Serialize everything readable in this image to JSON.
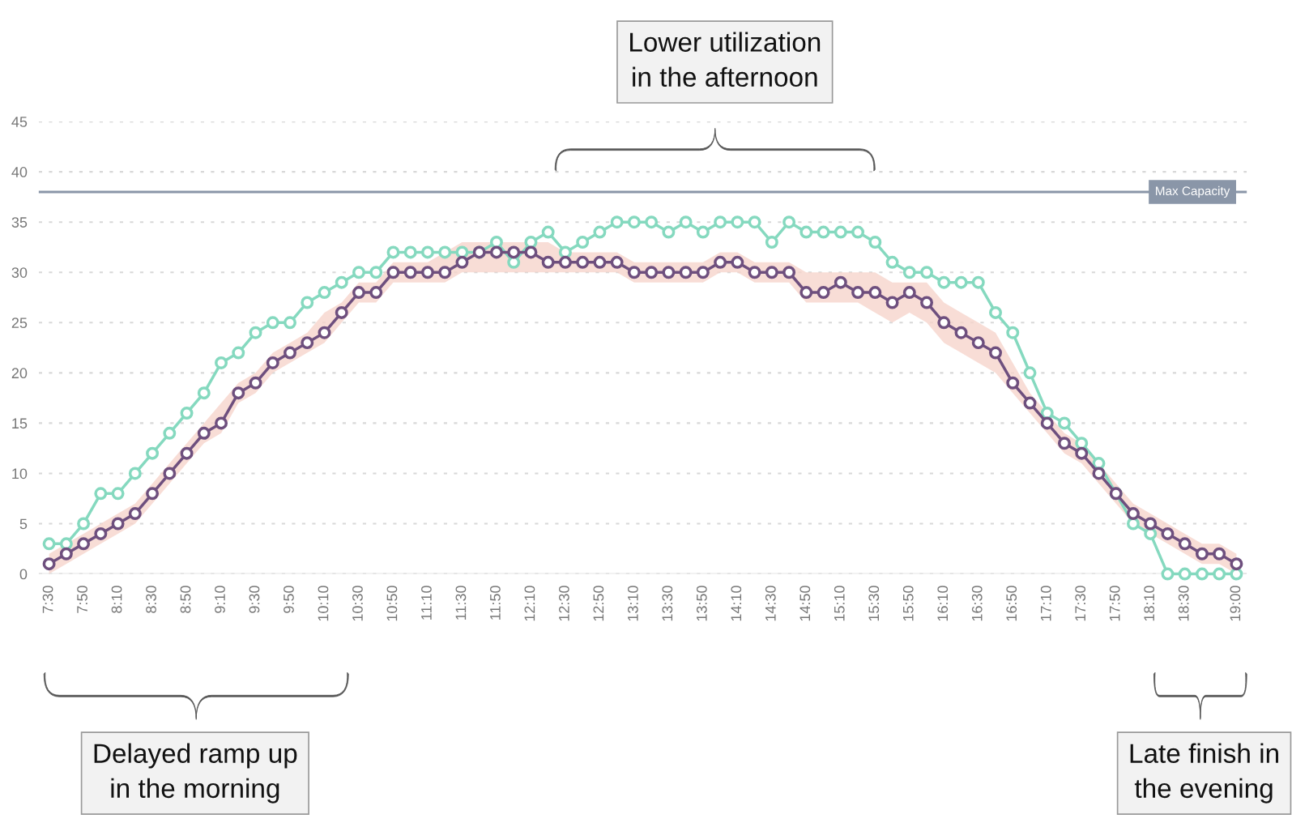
{
  "chart_data": {
    "type": "line",
    "x": [
      7.5,
      7.6667,
      7.8333,
      8.0,
      8.1667,
      8.3333,
      8.5,
      8.6667,
      8.8333,
      9.0,
      9.1667,
      9.3333,
      9.5,
      9.6667,
      9.8333,
      10.0,
      10.1667,
      10.3333,
      10.5,
      10.6667,
      10.8333,
      11.0,
      11.1667,
      11.3333,
      11.5,
      11.6667,
      11.8333,
      12.0,
      12.1667,
      12.3333,
      12.5,
      12.6667,
      12.8333,
      13.0,
      13.1667,
      13.3333,
      13.5,
      13.6667,
      13.8333,
      14.0,
      14.1667,
      14.3333,
      14.5,
      14.6667,
      14.8333,
      15.0,
      15.1667,
      15.3333,
      15.5,
      15.6667,
      15.8333,
      16.0,
      16.1667,
      16.3333,
      16.5,
      16.6667,
      16.8333,
      17.0,
      17.1667,
      17.3333,
      17.5,
      17.6667,
      17.8333,
      18.0,
      18.1667,
      18.3333,
      18.5,
      18.6667,
      18.8333,
      19.0
    ],
    "series": [
      {
        "color": "#85d9bf",
        "values": [
          3,
          3,
          5,
          8,
          8,
          10,
          12,
          14,
          16,
          18,
          21,
          22,
          24,
          25,
          25,
          27,
          28,
          29,
          30,
          30,
          32,
          32,
          32,
          32,
          32,
          32,
          33,
          31,
          33,
          34,
          32,
          33,
          34,
          35,
          35,
          35,
          34,
          35,
          34,
          35,
          35,
          35,
          33,
          35,
          34,
          34,
          34,
          34,
          33,
          31,
          30,
          30,
          29,
          29,
          29,
          26,
          24,
          20,
          16,
          15,
          13,
          11,
          8,
          5,
          4,
          0,
          0,
          0,
          0,
          0
        ]
      },
      {
        "color": "#6e4f7e",
        "values": [
          1,
          2,
          3,
          4,
          5,
          6,
          8,
          10,
          12,
          14,
          15,
          18,
          19,
          21,
          22,
          23,
          24,
          26,
          28,
          28,
          30,
          30,
          30,
          30,
          31,
          32,
          32,
          32,
          32,
          31,
          31,
          31,
          31,
          31,
          30,
          30,
          30,
          30,
          30,
          31,
          31,
          30,
          30,
          30,
          28,
          28,
          29,
          28,
          28,
          27,
          28,
          27,
          25,
          24,
          23,
          22,
          19,
          17,
          15,
          13,
          12,
          10,
          8,
          6,
          5,
          4,
          3,
          2,
          2,
          1
        ],
        "lower": [
          0,
          1,
          2,
          3,
          4,
          5,
          7,
          9,
          11,
          13,
          14,
          17,
          18,
          20,
          21,
          22,
          23,
          25,
          27,
          27,
          29,
          29,
          29,
          29,
          30,
          30,
          30,
          30,
          30,
          30,
          30,
          30,
          30,
          30,
          29,
          29,
          29,
          29,
          29,
          30,
          30,
          29,
          29,
          29,
          27,
          27,
          27,
          27,
          26,
          25,
          26,
          25,
          23,
          22,
          21,
          20,
          18,
          16,
          14,
          12,
          11,
          9,
          7,
          5,
          4,
          3,
          2,
          1,
          1,
          0
        ],
        "upper": [
          2,
          3,
          4,
          5,
          6,
          7,
          9,
          11,
          13,
          15,
          17,
          19,
          20,
          22,
          23,
          24,
          26,
          27,
          29,
          29,
          31,
          31,
          31,
          32,
          33,
          33,
          33,
          33,
          33,
          33,
          32,
          32,
          32,
          32,
          31,
          31,
          31,
          31,
          31,
          32,
          32,
          31,
          31,
          31,
          30,
          30,
          30,
          30,
          30,
          29,
          29,
          29,
          27,
          26,
          25,
          24,
          21,
          18,
          16,
          14,
          13,
          11,
          9,
          7,
          6,
          5,
          4,
          3,
          3,
          2
        ]
      }
    ],
    "xlim": [
      7.4,
      19.1
    ],
    "xticks": [
      {
        "value": 7.5,
        "label": "7:30"
      },
      {
        "value": 7.8333,
        "label": "7:50"
      },
      {
        "value": 8.1667,
        "label": "8:10"
      },
      {
        "value": 8.5,
        "label": "8:30"
      },
      {
        "value": 8.8333,
        "label": "8:50"
      },
      {
        "value": 9.1667,
        "label": "9:10"
      },
      {
        "value": 9.5,
        "label": "9:30"
      },
      {
        "value": 9.8333,
        "label": "9:50"
      },
      {
        "value": 10.1667,
        "label": "10:10"
      },
      {
        "value": 10.5,
        "label": "10:30"
      },
      {
        "value": 10.8333,
        "label": "10:50"
      },
      {
        "value": 11.1667,
        "label": "11:10"
      },
      {
        "value": 11.5,
        "label": "11:30"
      },
      {
        "value": 11.8333,
        "label": "11:50"
      },
      {
        "value": 12.1667,
        "label": "12:10"
      },
      {
        "value": 12.5,
        "label": "12:30"
      },
      {
        "value": 12.8333,
        "label": "12:50"
      },
      {
        "value": 13.1667,
        "label": "13:10"
      },
      {
        "value": 13.5,
        "label": "13:30"
      },
      {
        "value": 13.8333,
        "label": "13:50"
      },
      {
        "value": 14.1667,
        "label": "14:10"
      },
      {
        "value": 14.5,
        "label": "14:30"
      },
      {
        "value": 14.8333,
        "label": "14:50"
      },
      {
        "value": 15.1667,
        "label": "15:10"
      },
      {
        "value": 15.5,
        "label": "15:30"
      },
      {
        "value": 15.8333,
        "label": "15:50"
      },
      {
        "value": 16.1667,
        "label": "16:10"
      },
      {
        "value": 16.5,
        "label": "16:30"
      },
      {
        "value": 16.8333,
        "label": "16:50"
      },
      {
        "value": 17.1667,
        "label": "17:10"
      },
      {
        "value": 17.5,
        "label": "17:30"
      },
      {
        "value": 17.8333,
        "label": "17:50"
      },
      {
        "value": 18.1667,
        "label": "18:10"
      },
      {
        "value": 18.5,
        "label": "18:30"
      },
      {
        "value": 19.0,
        "label": "19:00"
      }
    ],
    "ylim": [
      0,
      45
    ],
    "yticks": [
      0,
      5,
      10,
      15,
      20,
      25,
      30,
      35,
      40,
      45
    ],
    "grid": "y",
    "marker": "circle",
    "line_style": "solid",
    "ref_lines": [
      {
        "axis": "y",
        "value": 38,
        "label": "Max Capacity",
        "color": "#8a96a8"
      }
    ],
    "annotations": [
      "Lower utilization\nin the afternoon",
      "Delayed ramp up\nin the morning",
      "Late finish in\nthe evening"
    ]
  }
}
